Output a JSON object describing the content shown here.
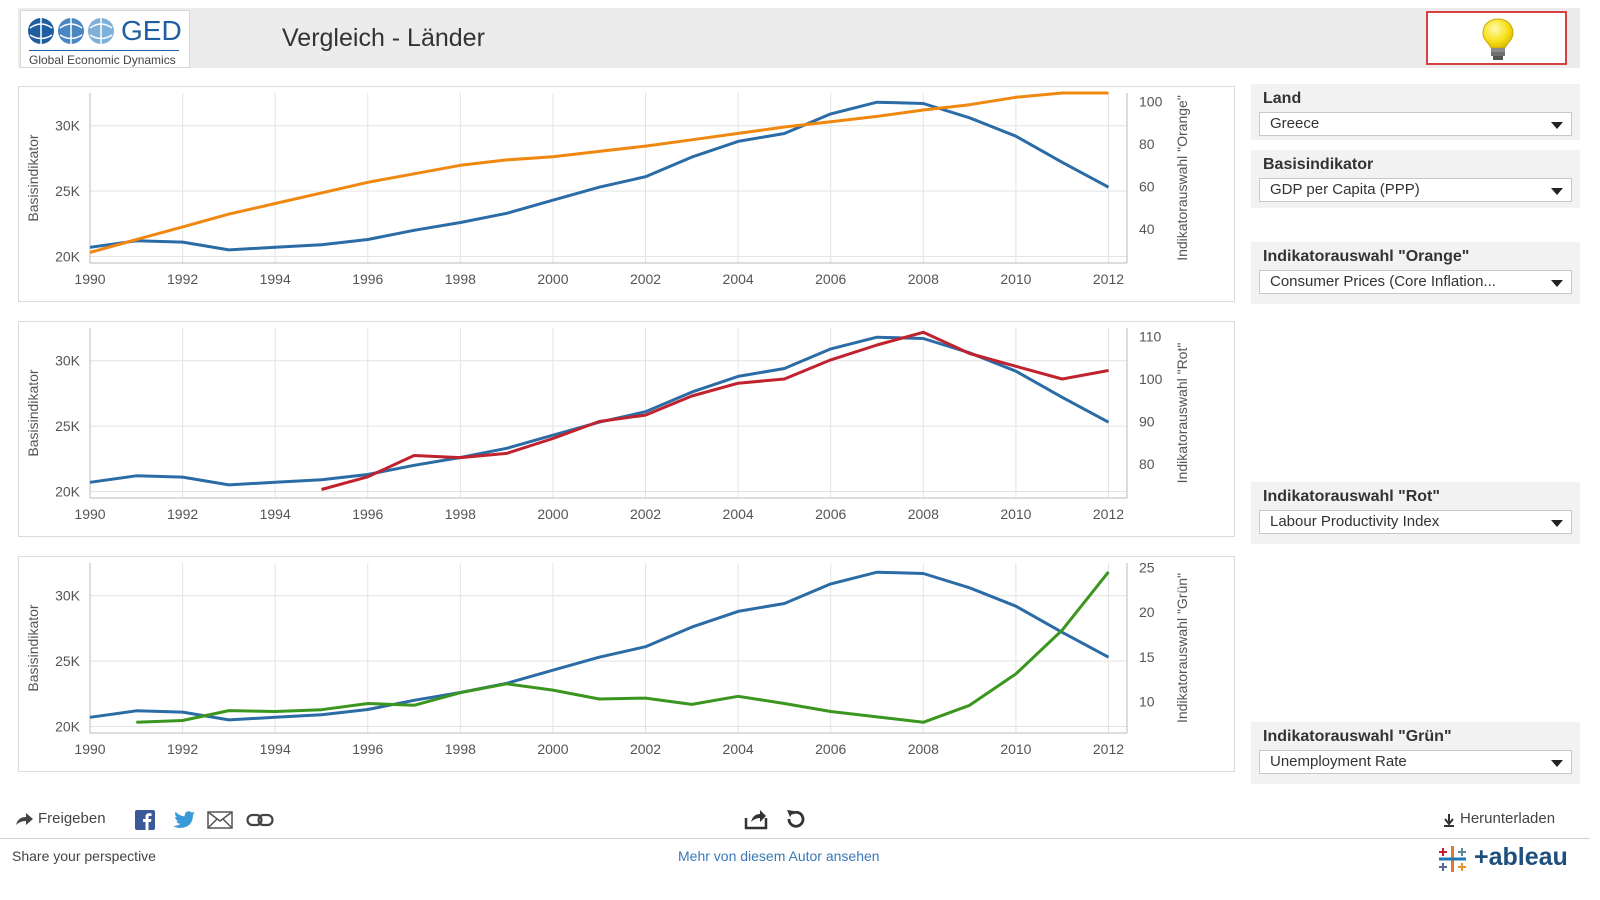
{
  "header": {
    "logo_text": "GED",
    "logo_subtitle": "Global Economic Dynamics",
    "title": "Vergleich - Länder",
    "bulb_icon": "lightbulb-icon"
  },
  "filters": {
    "land": {
      "label": "Land",
      "value": "Greece"
    },
    "basis": {
      "label": "Basisindikator",
      "value": "GDP per Capita (PPP)"
    },
    "orange": {
      "label": "Indikatorauswahl \"Orange\"",
      "value": "Consumer Prices (Core Inflation..."
    },
    "rot": {
      "label": "Indikatorauswahl \"Rot\"",
      "value": "Labour Productivity Index"
    },
    "gruen": {
      "label": "Indikatorauswahl \"Grün\"",
      "value": "Unemployment Rate"
    }
  },
  "toolbar": {
    "share_label": "Freigeben",
    "download_label": "Herunterladen",
    "icons": [
      "share-arrow-icon",
      "facebook-icon",
      "twitter-icon",
      "email-icon",
      "link-icon",
      "export-icon",
      "revert-icon",
      "download-icon"
    ]
  },
  "footer": {
    "left_text": "Share your perspective",
    "link_text": "Mehr von diesem Autor ansehen",
    "brand": "+ableau"
  },
  "colors": {
    "blue": "#2b6ca6",
    "orange": "#f0880f",
    "red": "#c0222e",
    "green": "#3a961e",
    "grid": "#e4e4e4"
  },
  "chart_data": [
    {
      "type": "line",
      "x_ticks": [
        "1990",
        "1992",
        "1994",
        "1996",
        "1998",
        "2000",
        "2002",
        "2004",
        "2006",
        "2008",
        "2010",
        "2012"
      ],
      "ylabel": "Basisindikator",
      "y2label": "Indikatorauswahl \"Orange\"",
      "ylim": [
        19500,
        32500
      ],
      "y_ticks": [
        {
          "v": 20000,
          "t": "20K"
        },
        {
          "v": 25000,
          "t": "25K"
        },
        {
          "v": 30000,
          "t": "30K"
        }
      ],
      "y2lim": [
        24,
        104
      ],
      "y2_ticks": [
        {
          "v": 40,
          "t": "40"
        },
        {
          "v": 60,
          "t": "60"
        },
        {
          "v": 80,
          "t": "80"
        },
        {
          "v": 100,
          "t": "100"
        }
      ],
      "series": [
        {
          "color": "blue",
          "axis": "left",
          "x": [
            1990,
            1991,
            1992,
            1993,
            1994,
            1995,
            1996,
            1997,
            1998,
            1999,
            2000,
            2001,
            2002,
            2003,
            2004,
            2005,
            2006,
            2007,
            2008,
            2009,
            2010,
            2011,
            2012
          ],
          "values": [
            20700,
            21200,
            21100,
            20500,
            20700,
            20900,
            21300,
            22000,
            22600,
            23300,
            24300,
            25300,
            26100,
            27600,
            28800,
            29400,
            30900,
            31800,
            31700,
            30600,
            29200,
            27200,
            25300
          ]
        },
        {
          "color": "orange",
          "axis": "right",
          "x": [
            1990,
            1991,
            1992,
            1993,
            1994,
            1995,
            1996,
            1997,
            1998,
            1999,
            2000,
            2001,
            2002,
            2003,
            2004,
            2005,
            2006,
            2007,
            2008,
            2009,
            2010,
            2011,
            2012
          ],
          "values": [
            29,
            35,
            41,
            47,
            52,
            57,
            62,
            66,
            70,
            72.5,
            74,
            76.5,
            79,
            82,
            85,
            88,
            90.5,
            93,
            96,
            98.5,
            102,
            104,
            104
          ]
        }
      ]
    },
    {
      "type": "line",
      "x_ticks": [
        "1990",
        "1992",
        "1994",
        "1996",
        "1998",
        "2000",
        "2002",
        "2004",
        "2006",
        "2008",
        "2010",
        "2012"
      ],
      "ylabel": "Basisindikator",
      "y2label": "Indikatorauswahl \"Rot\"",
      "ylim": [
        19500,
        32500
      ],
      "y_ticks": [
        {
          "v": 20000,
          "t": "20K"
        },
        {
          "v": 25000,
          "t": "25K"
        },
        {
          "v": 30000,
          "t": "30K"
        }
      ],
      "y2lim": [
        72,
        112
      ],
      "y2_ticks": [
        {
          "v": 80,
          "t": "80"
        },
        {
          "v": 90,
          "t": "90"
        },
        {
          "v": 100,
          "t": "100"
        },
        {
          "v": 110,
          "t": "110"
        }
      ],
      "series": [
        {
          "color": "blue",
          "axis": "left",
          "x": [
            1990,
            1991,
            1992,
            1993,
            1994,
            1995,
            1996,
            1997,
            1998,
            1999,
            2000,
            2001,
            2002,
            2003,
            2004,
            2005,
            2006,
            2007,
            2008,
            2009,
            2010,
            2011,
            2012
          ],
          "values": [
            20700,
            21200,
            21100,
            20500,
            20700,
            20900,
            21300,
            22000,
            22600,
            23300,
            24300,
            25300,
            26100,
            27600,
            28800,
            29400,
            30900,
            31800,
            31700,
            30600,
            29200,
            27200,
            25300
          ]
        },
        {
          "color": "red",
          "axis": "right",
          "x": [
            1995,
            1996,
            1997,
            1998,
            1999,
            2000,
            2001,
            2002,
            2003,
            2004,
            2005,
            2006,
            2007,
            2008,
            2009,
            2010,
            2011,
            2012
          ],
          "values": [
            74,
            77,
            82,
            81.5,
            82.5,
            86,
            90,
            91.5,
            96,
            99,
            100,
            104.5,
            108,
            111,
            106,
            103,
            100,
            102
          ]
        }
      ]
    },
    {
      "type": "line",
      "x_ticks": [
        "1990",
        "1992",
        "1994",
        "1996",
        "1998",
        "2000",
        "2002",
        "2004",
        "2006",
        "2008",
        "2010",
        "2012"
      ],
      "ylabel": "Basisindikator",
      "y2label": "Indikatorauswahl \"Grün\"",
      "ylim": [
        19500,
        32500
      ],
      "y_ticks": [
        {
          "v": 20000,
          "t": "20K"
        },
        {
          "v": 25000,
          "t": "25K"
        },
        {
          "v": 30000,
          "t": "30K"
        }
      ],
      "y2lim": [
        6.5,
        25.5
      ],
      "y2_ticks": [
        {
          "v": 10,
          "t": "10"
        },
        {
          "v": 15,
          "t": "15"
        },
        {
          "v": 20,
          "t": "20"
        },
        {
          "v": 25,
          "t": "25"
        }
      ],
      "series": [
        {
          "color": "blue",
          "axis": "left",
          "x": [
            1990,
            1991,
            1992,
            1993,
            1994,
            1995,
            1996,
            1997,
            1998,
            1999,
            2000,
            2001,
            2002,
            2003,
            2004,
            2005,
            2006,
            2007,
            2008,
            2009,
            2010,
            2011,
            2012
          ],
          "values": [
            20700,
            21200,
            21100,
            20500,
            20700,
            20900,
            21300,
            22000,
            22600,
            23300,
            24300,
            25300,
            26100,
            27600,
            28800,
            29400,
            30900,
            31800,
            31700,
            30600,
            29200,
            27200,
            25300
          ]
        },
        {
          "color": "green",
          "axis": "right",
          "x": [
            1991,
            1992,
            1993,
            1994,
            1995,
            1996,
            1997,
            1998,
            1999,
            2000,
            2001,
            2002,
            2003,
            2004,
            2005,
            2006,
            2007,
            2008,
            2009,
            2010,
            2011,
            2012
          ],
          "values": [
            7.7,
            7.9,
            9.0,
            8.9,
            9.1,
            9.8,
            9.6,
            11.0,
            12.0,
            11.3,
            10.3,
            10.4,
            9.7,
            10.6,
            9.8,
            8.9,
            8.3,
            7.7,
            9.6,
            13.1,
            18.0,
            24.5
          ]
        }
      ]
    }
  ]
}
